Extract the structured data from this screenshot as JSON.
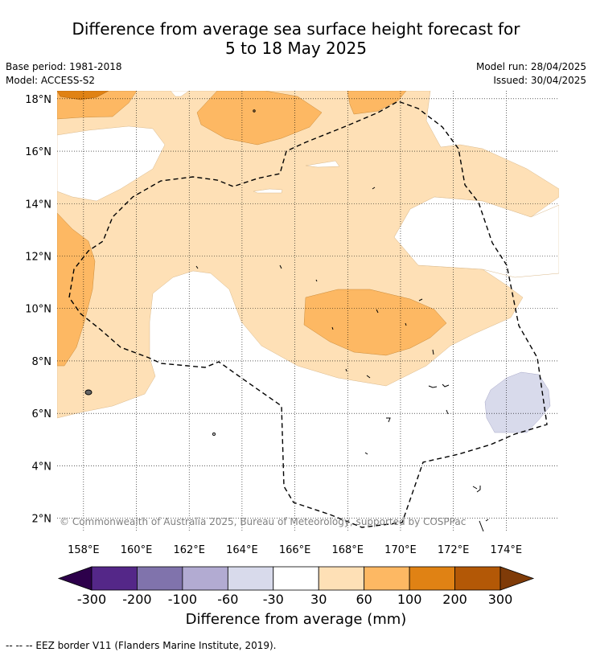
{
  "header": {
    "title_line1": "Difference from average sea surface height forecast for",
    "title_line2": "5 to 18 May 2025",
    "base_period": "Base period: 1981-2018",
    "model": "Model: ACCESS-S2",
    "model_run": "Model run: 28/04/2025",
    "issued": "Issued: 30/04/2025"
  },
  "map": {
    "lon_ticks": [
      "158°E",
      "160°E",
      "162°E",
      "164°E",
      "166°E",
      "168°E",
      "170°E",
      "172°E",
      "174°E"
    ],
    "lat_ticks": [
      "18°N",
      "16°N",
      "14°N",
      "12°N",
      "10°N",
      "8°N",
      "6°N",
      "4°N",
      "2°N"
    ],
    "lon_range": [
      157,
      176
    ],
    "lat_range": [
      1.5,
      18.3
    ],
    "copyright": "© Commonwealth of Australia 2025, Bureau of Meteorology, supported by COSPPac",
    "grid": true
  },
  "colorbar": {
    "title": "Difference from average (mm)",
    "tick_labels": [
      "-300",
      "-200",
      "-100",
      "-60",
      "-30",
      "30",
      "60",
      "100",
      "200",
      "300"
    ],
    "colors": [
      "#2d004b",
      "#542788",
      "#8073ac",
      "#b2abd2",
      "#d8daeb",
      "#ffffff",
      "#fee0b6",
      "#fdb863",
      "#e08214",
      "#b35806",
      "#7f3b08"
    ]
  },
  "footnote": "--  --  -- EEZ border V11 (Flanders Marine Institute, 2019)."
}
